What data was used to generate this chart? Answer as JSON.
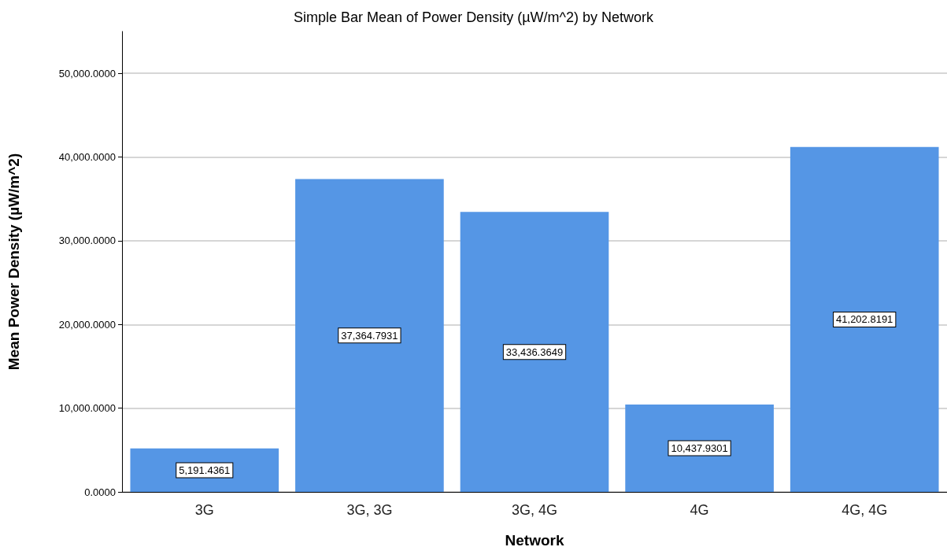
{
  "chart_data": {
    "type": "bar",
    "title": "Simple Bar Mean of Power Density (µW/m^2) by Network",
    "xlabel": "Network",
    "ylabel": "Mean Power Density (µW/m^2)",
    "categories": [
      "3G",
      "3G, 3G",
      "3G, 4G",
      "4G",
      "4G, 4G"
    ],
    "values": [
      5191.4361,
      37364.7931,
      33436.3649,
      10437.9301,
      41202.8191
    ],
    "value_labels": [
      "5,191.4361",
      "37,364.7931",
      "33,436.3649",
      "10,437.9301",
      "41,202.8191"
    ],
    "color": "#5596e5",
    "ylim": [
      0,
      55000
    ],
    "yticks": [
      {
        "value": 0,
        "label": "0.0000"
      },
      {
        "value": 10000,
        "label": "10,000.0000"
      },
      {
        "value": 20000,
        "label": "20,000.0000"
      },
      {
        "value": 30000,
        "label": "30,000.0000"
      },
      {
        "value": 40000,
        "label": "40,000.0000"
      },
      {
        "value": 50000,
        "label": "50,000.0000"
      }
    ],
    "grid": "y"
  }
}
